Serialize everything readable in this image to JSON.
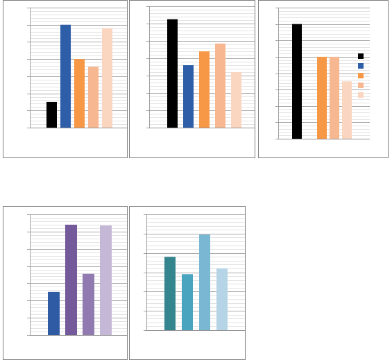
{
  "colors": {
    "black": "#000000",
    "blue": "#2e5ea8",
    "orange": "#f69845",
    "peach": "#f7b891",
    "light-peach": "#fad5c0",
    "purple-blue": "#2f5ba5",
    "dark-purple": "#745a9a",
    "purple": "#917aaf",
    "lavender": "#c4b8d6",
    "teal": "#35858f",
    "cyan": "#49a5bf",
    "sky": "#7ab7d2",
    "pale-blue": "#b5d5e6",
    "gridline": "#aaaaaa"
  },
  "chart_data": [
    {
      "type": "bar",
      "ylim": [
        0,
        7
      ],
      "grid": "major-minor",
      "values": [
        1.5,
        6.0,
        4.0,
        3.55,
        5.8
      ],
      "colors": [
        "black",
        "blue",
        "orange",
        "peach",
        "light-peach"
      ]
    },
    {
      "type": "bar",
      "ylim": [
        0,
        7
      ],
      "grid": "major-minor",
      "values": [
        6.25,
        3.6,
        4.4,
        4.85,
        3.2
      ],
      "colors": [
        "black",
        "blue",
        "orange",
        "peach",
        "light-peach"
      ]
    },
    {
      "type": "bar",
      "ylim": [
        0,
        8
      ],
      "grid": "major-minor",
      "values": [
        7.0,
        0,
        5.0,
        5.0,
        3.5
      ],
      "colors": [
        "black",
        "blue",
        "orange",
        "peach",
        "light-peach"
      ],
      "legend_position": "right",
      "legend_swatches": [
        "black",
        "blue",
        "orange",
        "peach",
        "light-peach"
      ]
    },
    {
      "type": "bar",
      "ylim": [
        0,
        7
      ],
      "grid": "major-minor",
      "values": [
        2.5,
        6.4,
        3.55,
        6.35
      ],
      "colors": [
        "purple-blue",
        "dark-purple",
        "purple",
        "lavender"
      ]
    },
    {
      "type": "bar",
      "ylim": [
        0,
        6
      ],
      "grid": "major-minor",
      "values": [
        3.8,
        2.9,
        4.95,
        3.2
      ],
      "colors": [
        "teal",
        "cyan",
        "sky",
        "pale-blue"
      ]
    }
  ]
}
